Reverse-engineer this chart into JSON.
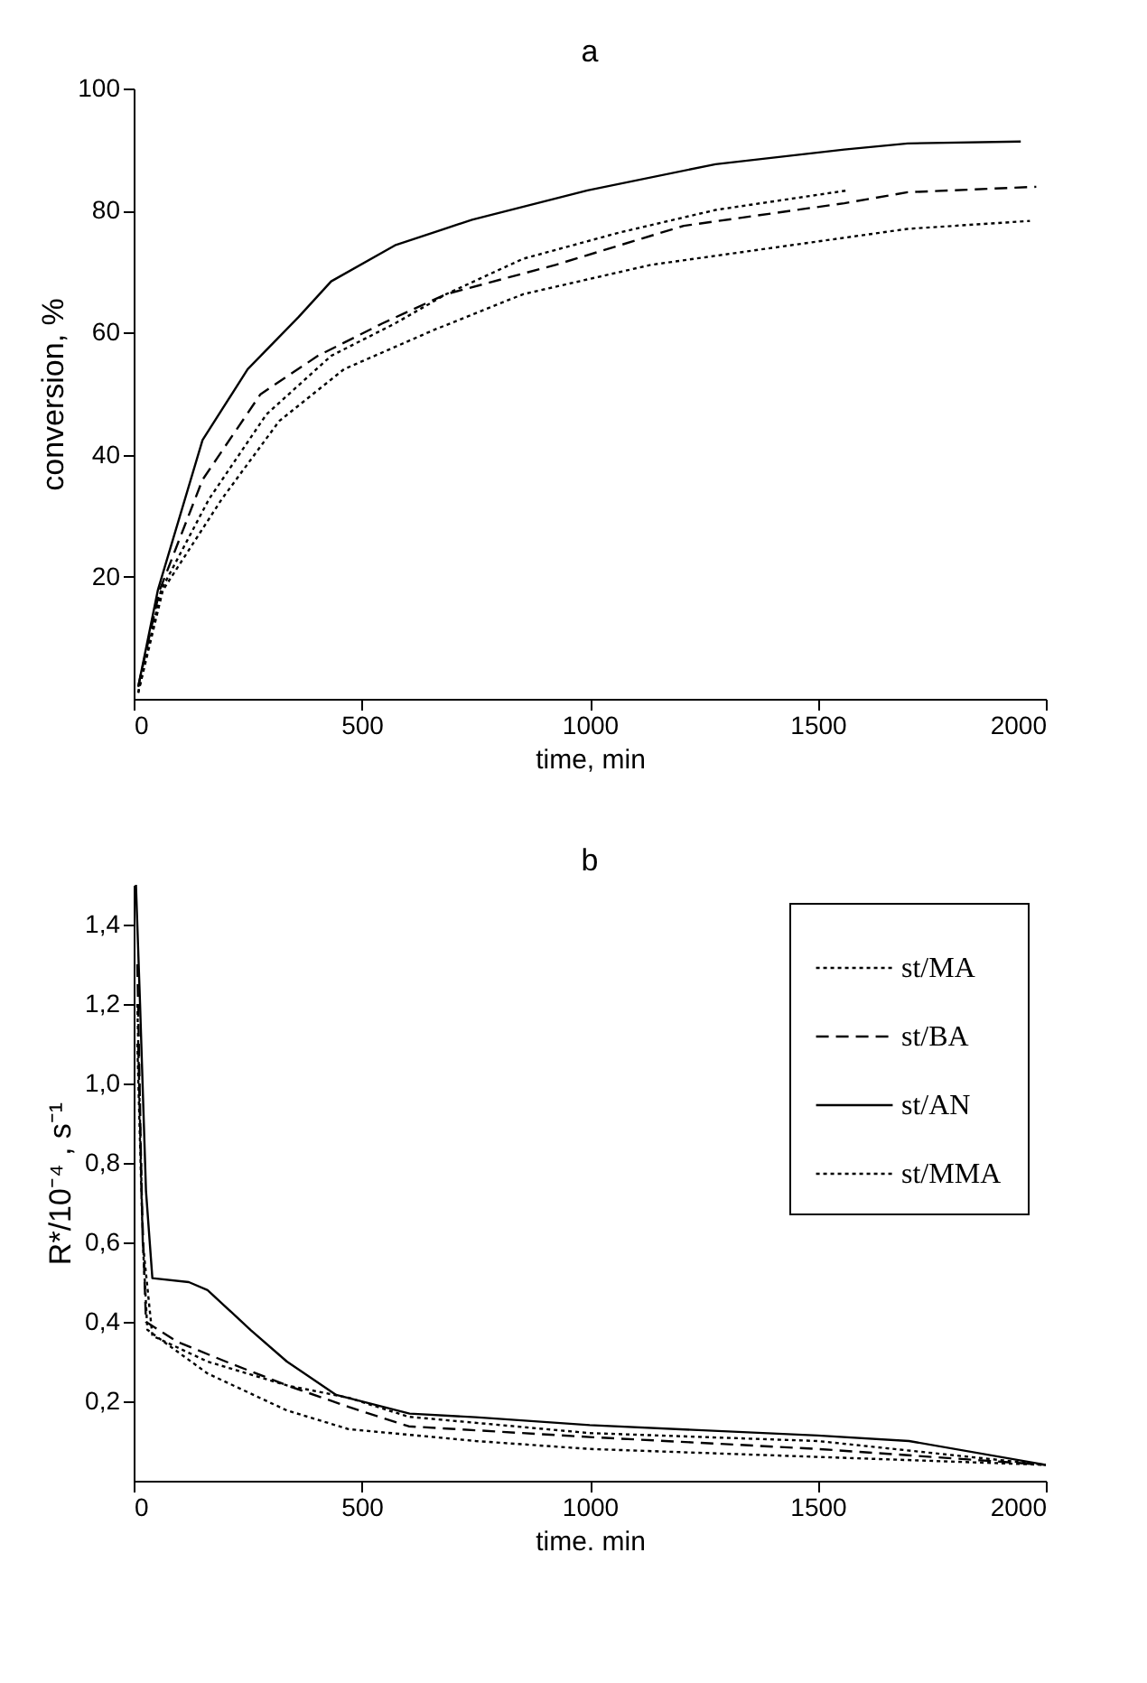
{
  "chart_data": [
    {
      "type": "line",
      "title": "a",
      "xlabel": "time, min",
      "ylabel": "conversion, %",
      "xlim": [
        0,
        2000
      ],
      "xticks": [
        0,
        500,
        1000,
        1500,
        2000
      ],
      "ylim": [
        0,
        100
      ],
      "yticks": [
        20,
        40,
        60,
        80,
        100
      ],
      "series": [
        {
          "color": "#000000",
          "line_style": "solid",
          "x": [
            10,
            53,
            151,
            250,
            362,
            433,
            573,
            742,
            995,
            1276,
            1558,
            1697,
            1945
          ],
          "values": [
            2,
            17.8,
            42.4,
            54,
            62.6,
            68.4,
            74.3,
            78.5,
            83.3,
            87.6,
            90,
            91,
            91.3
          ]
        },
        {
          "color": "#000000",
          "line_style": "dashed",
          "x": [
            10,
            57,
            151,
            278,
            404,
            545,
            685,
            925,
            1206,
            1558,
            1697,
            1979
          ],
          "values": [
            2,
            17.8,
            35.9,
            49.9,
            56.2,
            61.5,
            66.3,
            71.1,
            77.5,
            81.2,
            83,
            83.9
          ]
        },
        {
          "color": "#000000",
          "line_style": "dotted",
          "x": [
            10,
            60,
            165,
            291,
            433,
            573,
            685,
            854,
            1065,
            1276,
            1565
          ],
          "values": [
            1,
            17.8,
            32.7,
            46.6,
            56.2,
            61.5,
            66.3,
            72.1,
            76.4,
            80.1,
            83.3
          ]
        },
        {
          "color": "#000000",
          "line_style": "dotted",
          "x": [
            10,
            64,
            193,
            319,
            461,
            657,
            854,
            1134,
            1487,
            1697,
            1965
          ],
          "values": [
            1,
            17.8,
            32.7,
            45.5,
            54,
            60.4,
            66.3,
            71.1,
            74.8,
            77,
            78.3
          ]
        }
      ]
    },
    {
      "type": "line",
      "title": "b",
      "xlabel": "time. min",
      "ylabel": "R*/10⁻⁴ , s⁻¹",
      "xlim": [
        0,
        2000
      ],
      "xticks": [
        0,
        500,
        1000,
        1500,
        2000
      ],
      "ylim": [
        0,
        1.5
      ],
      "yticks": [
        {
          "value": 0.2,
          "label": "0,2"
        },
        {
          "value": 0.4,
          "label": "0,4"
        },
        {
          "value": 0.6,
          "label": "0,6"
        },
        {
          "value": 0.8,
          "label": "0,8"
        },
        {
          "value": 1,
          "label": "1,0"
        },
        {
          "value": 1.2,
          "label": "1,2"
        },
        {
          "value": 1.4,
          "label": "1,4"
        }
      ],
      "legend": "top right",
      "series": [
        {
          "name": "st/MA",
          "color": "#000000",
          "line_style": "dotted",
          "x": [
            8,
            20,
            30,
            162,
            336,
            471,
            750,
            1000,
            1500,
            2000
          ],
          "values": [
            1.2,
            0.6,
            0.38,
            0.27,
            0.177,
            0.13,
            0.1,
            0.08,
            0.06,
            0.04
          ]
        },
        {
          "name": "st/BA",
          "color": "#000000",
          "line_style": "dashed",
          "x": [
            8,
            18,
            27,
            95,
            202,
            336,
            471,
            603,
            1000,
            1500,
            2000
          ],
          "values": [
            1.3,
            0.7,
            0.4,
            0.35,
            0.3,
            0.24,
            0.186,
            0.137,
            0.11,
            0.08,
            0.04
          ]
        },
        {
          "name": "st/AN",
          "color": "#000000",
          "line_style": "solid",
          "x": [
            5,
            14,
            27,
            41,
            121,
            162,
            256,
            336,
            444,
            605,
            750,
            1000,
            1500,
            1700,
            2000
          ],
          "values": [
            1.5,
            1.2,
            0.73,
            0.51,
            0.5,
            0.48,
            0.38,
            0.3,
            0.216,
            0.169,
            0.16,
            0.14,
            0.114,
            0.1,
            0.04
          ]
        },
        {
          "name": "st/MMA",
          "color": "#000000",
          "line_style": "dotted",
          "x": [
            8,
            20,
            41,
            162,
            336,
            471,
            603,
            1000,
            1500,
            2000
          ],
          "values": [
            1.1,
            0.6,
            0.365,
            0.3,
            0.24,
            0.209,
            0.161,
            0.12,
            0.1,
            0.04
          ]
        }
      ]
    }
  ]
}
